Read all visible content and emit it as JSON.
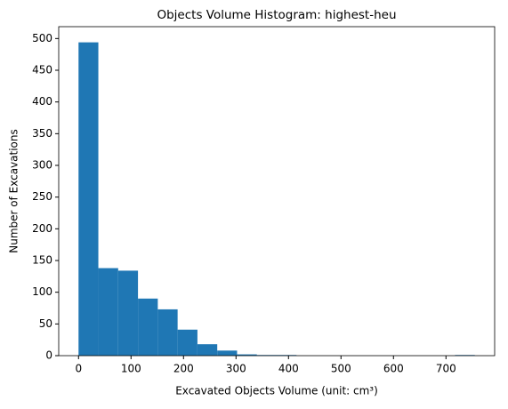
{
  "chart_data": {
    "type": "histogram",
    "title": "Objects Volume Histogram: highest-heu",
    "x_label": "Excavated Objects Volume (unit: cm³)",
    "y_label": "Number of Excavations",
    "bins": [
      0,
      37.75,
      75.5,
      113.25,
      151,
      188.75,
      226.5,
      264.25,
      302,
      339.75,
      377.5,
      415.25,
      453,
      490.75,
      528.5,
      566.25,
      604,
      641.75,
      679.5,
      717.25,
      755
    ],
    "values": [
      494,
      138,
      134,
      90,
      73,
      41,
      18,
      8,
      2,
      1,
      1,
      0,
      0,
      0,
      0,
      0,
      0,
      0,
      0,
      1
    ],
    "color": "#1f77b4",
    "xlim": [
      -37.75,
      792.75
    ],
    "ylim": [
      0,
      518.7
    ],
    "xticks": [
      0,
      100,
      200,
      300,
      400,
      500,
      600,
      700
    ],
    "yticks": [
      0,
      50,
      100,
      150,
      200,
      250,
      300,
      350,
      400,
      450,
      500
    ],
    "grid": false
  }
}
